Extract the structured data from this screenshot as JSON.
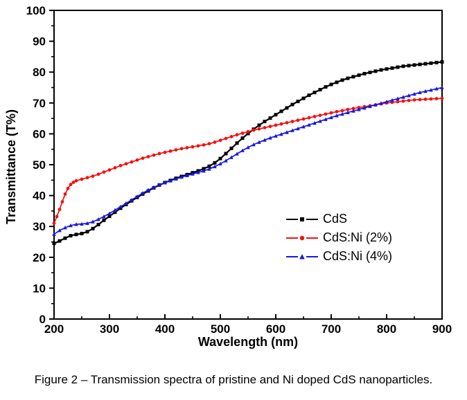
{
  "figure": {
    "caption": "Figure 2 – Transmission spectra of pristine and Ni doped CdS nanoparticles."
  },
  "chart_data": {
    "type": "line",
    "title": "",
    "xlabel": "Wavelength (nm)",
    "ylabel": "Transmittance (T%)",
    "xlim": [
      200,
      900
    ],
    "ylim": [
      0,
      100
    ],
    "x_ticks_major": [
      200,
      300,
      400,
      500,
      600,
      700,
      800,
      900
    ],
    "x_ticks_minor": [
      250,
      350,
      450,
      550,
      650,
      750,
      850
    ],
    "y_ticks_major": [
      0,
      10,
      20,
      30,
      40,
      50,
      60,
      70,
      80,
      90,
      100
    ],
    "y_ticks_minor": [
      5,
      15,
      25,
      35,
      45,
      55,
      65,
      75,
      85,
      95
    ],
    "grid": false,
    "legend_position": "inside-right-middle",
    "frame_color": "#000000",
    "series": [
      {
        "name": "CdS",
        "color": "#000000",
        "marker": "square",
        "points": [
          [
            200,
            24.5
          ],
          [
            210,
            25.3
          ],
          [
            220,
            26.2
          ],
          [
            230,
            27.0
          ],
          [
            240,
            27.4
          ],
          [
            250,
            27.7
          ],
          [
            260,
            28.3
          ],
          [
            270,
            29.3
          ],
          [
            280,
            30.6
          ],
          [
            290,
            32.0
          ],
          [
            300,
            33.3
          ],
          [
            310,
            34.6
          ],
          [
            320,
            35.9
          ],
          [
            330,
            37.1
          ],
          [
            340,
            38.3
          ],
          [
            350,
            39.4
          ],
          [
            360,
            40.5
          ],
          [
            370,
            41.5
          ],
          [
            380,
            42.5
          ],
          [
            390,
            43.4
          ],
          [
            400,
            44.2
          ],
          [
            410,
            44.9
          ],
          [
            420,
            45.6
          ],
          [
            430,
            46.2
          ],
          [
            440,
            46.8
          ],
          [
            450,
            47.4
          ],
          [
            460,
            48.0
          ],
          [
            470,
            48.7
          ],
          [
            480,
            49.5
          ],
          [
            490,
            50.6
          ],
          [
            500,
            52.0
          ],
          [
            510,
            53.6
          ],
          [
            520,
            55.3
          ],
          [
            530,
            57.0
          ],
          [
            540,
            58.6
          ],
          [
            550,
            60.1
          ],
          [
            560,
            61.5
          ],
          [
            570,
            62.8
          ],
          [
            580,
            64.0
          ],
          [
            590,
            65.1
          ],
          [
            600,
            66.2
          ],
          [
            610,
            67.3
          ],
          [
            620,
            68.4
          ],
          [
            630,
            69.5
          ],
          [
            640,
            70.5
          ],
          [
            650,
            71.5
          ],
          [
            660,
            72.5
          ],
          [
            670,
            73.4
          ],
          [
            680,
            74.3
          ],
          [
            690,
            75.2
          ],
          [
            700,
            76.0
          ],
          [
            710,
            76.7
          ],
          [
            720,
            77.4
          ],
          [
            730,
            78.0
          ],
          [
            740,
            78.5
          ],
          [
            750,
            79.0
          ],
          [
            760,
            79.5
          ],
          [
            770,
            79.9
          ],
          [
            780,
            80.3
          ],
          [
            790,
            80.7
          ],
          [
            800,
            81.0
          ],
          [
            810,
            81.3
          ],
          [
            820,
            81.6
          ],
          [
            830,
            81.9
          ],
          [
            840,
            82.1
          ],
          [
            850,
            82.3
          ],
          [
            860,
            82.5
          ],
          [
            870,
            82.7
          ],
          [
            880,
            82.9
          ],
          [
            890,
            83.1
          ],
          [
            900,
            83.3
          ]
        ]
      },
      {
        "name": "CdS:Ni (2%)",
        "color": "#f50f0f",
        "marker": "circle",
        "points": [
          [
            200,
            31.0
          ],
          [
            205,
            33.2
          ],
          [
            210,
            35.5
          ],
          [
            215,
            38.0
          ],
          [
            220,
            40.5
          ],
          [
            225,
            42.3
          ],
          [
            230,
            43.6
          ],
          [
            235,
            44.3
          ],
          [
            240,
            44.8
          ],
          [
            250,
            45.3
          ],
          [
            260,
            45.8
          ],
          [
            270,
            46.3
          ],
          [
            280,
            46.9
          ],
          [
            290,
            47.6
          ],
          [
            300,
            48.3
          ],
          [
            310,
            49.0
          ],
          [
            320,
            49.7
          ],
          [
            330,
            50.3
          ],
          [
            340,
            50.9
          ],
          [
            350,
            51.5
          ],
          [
            360,
            52.1
          ],
          [
            370,
            52.6
          ],
          [
            380,
            53.1
          ],
          [
            390,
            53.6
          ],
          [
            400,
            54.0
          ],
          [
            410,
            54.4
          ],
          [
            420,
            54.8
          ],
          [
            430,
            55.2
          ],
          [
            440,
            55.5
          ],
          [
            450,
            55.8
          ],
          [
            460,
            56.1
          ],
          [
            470,
            56.4
          ],
          [
            480,
            56.8
          ],
          [
            490,
            57.3
          ],
          [
            500,
            57.9
          ],
          [
            510,
            58.5
          ],
          [
            520,
            59.1
          ],
          [
            530,
            59.7
          ],
          [
            540,
            60.2
          ],
          [
            550,
            60.7
          ],
          [
            560,
            61.2
          ],
          [
            570,
            61.6
          ],
          [
            580,
            62.0
          ],
          [
            590,
            62.4
          ],
          [
            600,
            62.8
          ],
          [
            610,
            63.2
          ],
          [
            620,
            63.6
          ],
          [
            630,
            64.0
          ],
          [
            640,
            64.4
          ],
          [
            650,
            64.8
          ],
          [
            660,
            65.2
          ],
          [
            670,
            65.6
          ],
          [
            680,
            66.0
          ],
          [
            690,
            66.4
          ],
          [
            700,
            66.8
          ],
          [
            710,
            67.2
          ],
          [
            720,
            67.5
          ],
          [
            730,
            67.9
          ],
          [
            740,
            68.2
          ],
          [
            750,
            68.5
          ],
          [
            760,
            68.8
          ],
          [
            770,
            69.1
          ],
          [
            780,
            69.4
          ],
          [
            790,
            69.7
          ],
          [
            800,
            70.0
          ],
          [
            810,
            70.2
          ],
          [
            820,
            70.4
          ],
          [
            830,
            70.6
          ],
          [
            840,
            70.8
          ],
          [
            850,
            71.0
          ],
          [
            860,
            71.1
          ],
          [
            870,
            71.2
          ],
          [
            880,
            71.3
          ],
          [
            890,
            71.4
          ],
          [
            900,
            71.5
          ]
        ]
      },
      {
        "name": "CdS:Ni (4%)",
        "color": "#1818dd",
        "marker": "triangle",
        "points": [
          [
            200,
            27.5
          ],
          [
            210,
            28.7
          ],
          [
            220,
            29.6
          ],
          [
            230,
            30.3
          ],
          [
            240,
            30.7
          ],
          [
            250,
            30.8
          ],
          [
            260,
            31.0
          ],
          [
            270,
            31.5
          ],
          [
            280,
            32.3
          ],
          [
            290,
            33.2
          ],
          [
            300,
            34.2
          ],
          [
            310,
            35.3
          ],
          [
            320,
            36.4
          ],
          [
            330,
            37.5
          ],
          [
            340,
            38.6
          ],
          [
            350,
            39.7
          ],
          [
            360,
            40.8
          ],
          [
            370,
            41.8
          ],
          [
            380,
            42.7
          ],
          [
            390,
            43.5
          ],
          [
            400,
            44.2
          ],
          [
            410,
            44.8
          ],
          [
            420,
            45.4
          ],
          [
            430,
            46.0
          ],
          [
            440,
            46.5
          ],
          [
            450,
            47.0
          ],
          [
            460,
            47.5
          ],
          [
            470,
            48.0
          ],
          [
            480,
            48.6
          ],
          [
            490,
            49.4
          ],
          [
            500,
            50.3
          ],
          [
            510,
            51.3
          ],
          [
            520,
            52.4
          ],
          [
            530,
            53.5
          ],
          [
            540,
            54.6
          ],
          [
            550,
            55.6
          ],
          [
            560,
            56.5
          ],
          [
            570,
            57.3
          ],
          [
            580,
            58.0
          ],
          [
            590,
            58.7
          ],
          [
            600,
            59.3
          ],
          [
            610,
            59.9
          ],
          [
            620,
            60.5
          ],
          [
            630,
            61.1
          ],
          [
            640,
            61.7
          ],
          [
            650,
            62.3
          ],
          [
            660,
            62.9
          ],
          [
            670,
            63.5
          ],
          [
            680,
            64.1
          ],
          [
            690,
            64.7
          ],
          [
            700,
            65.3
          ],
          [
            710,
            65.9
          ],
          [
            720,
            66.4
          ],
          [
            730,
            66.9
          ],
          [
            740,
            67.4
          ],
          [
            750,
            67.9
          ],
          [
            760,
            68.4
          ],
          [
            770,
            68.9
          ],
          [
            780,
            69.4
          ],
          [
            790,
            69.9
          ],
          [
            800,
            70.4
          ],
          [
            810,
            70.9
          ],
          [
            820,
            71.4
          ],
          [
            830,
            71.9
          ],
          [
            840,
            72.4
          ],
          [
            850,
            72.9
          ],
          [
            860,
            73.4
          ],
          [
            870,
            73.8
          ],
          [
            880,
            74.2
          ],
          [
            890,
            74.6
          ],
          [
            900,
            75.0
          ]
        ]
      }
    ]
  }
}
